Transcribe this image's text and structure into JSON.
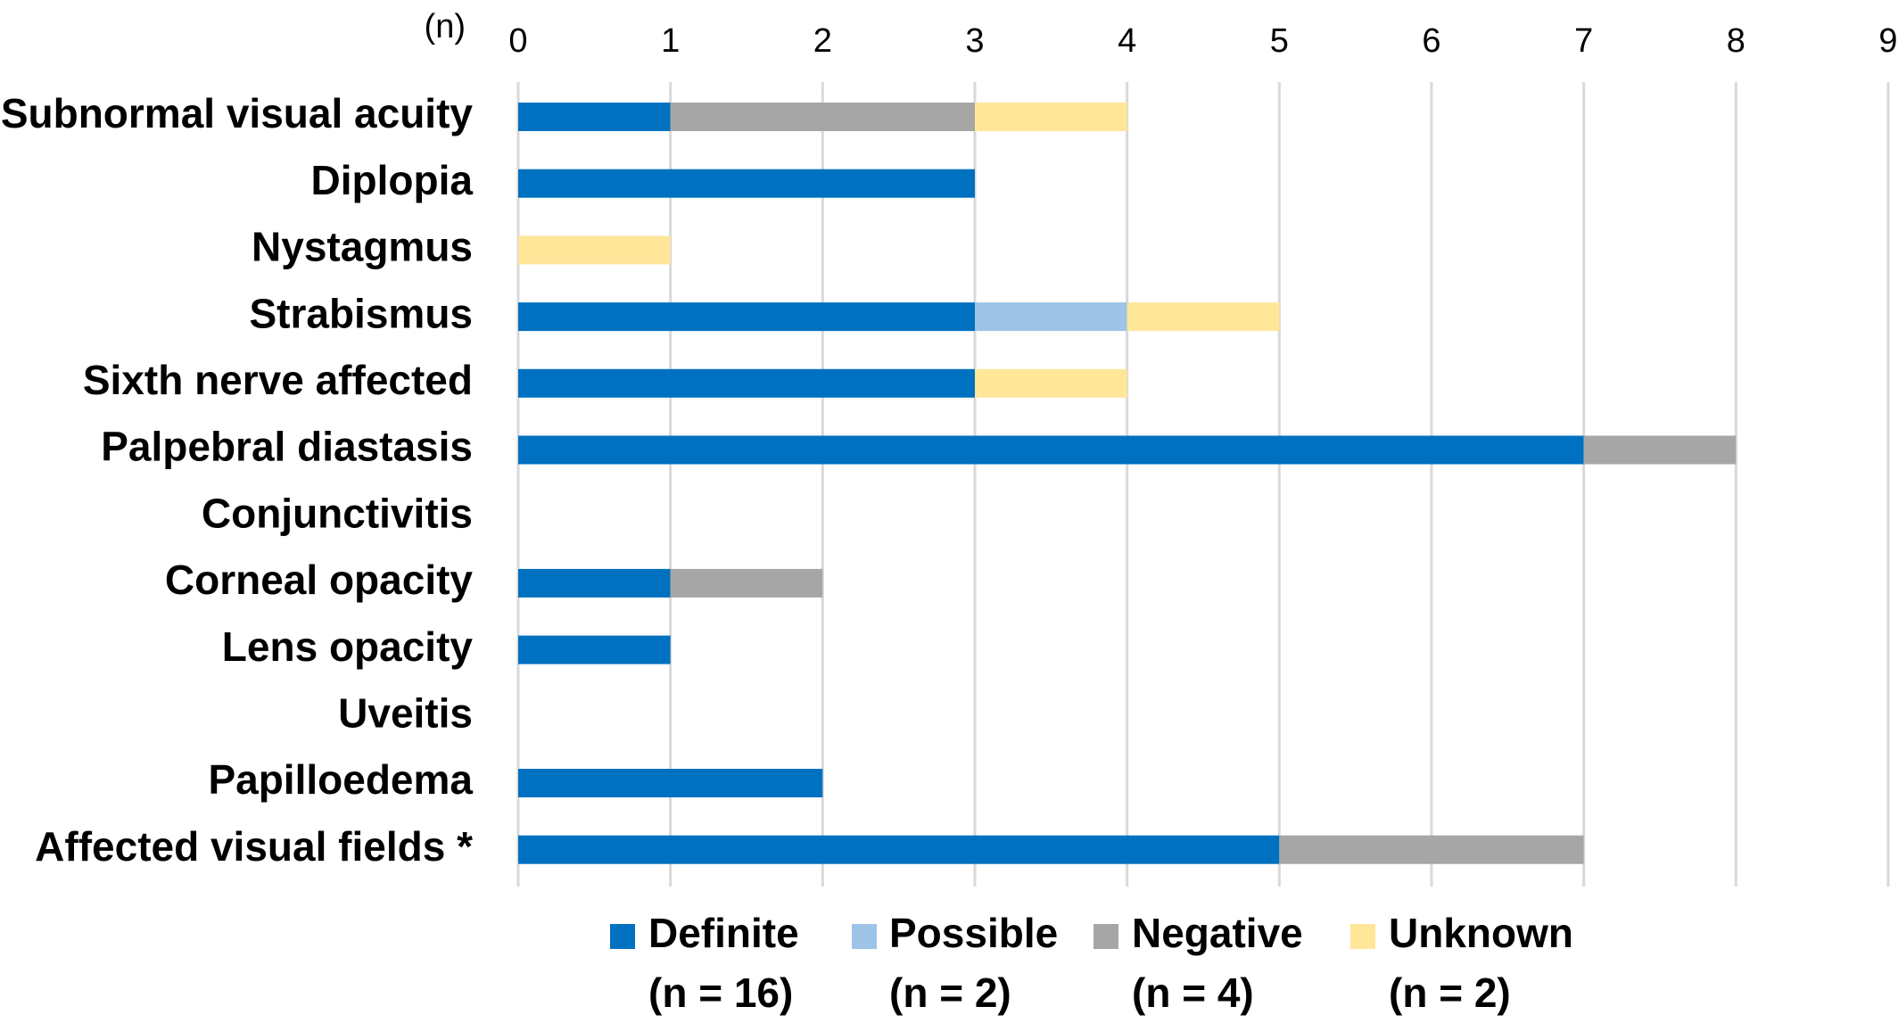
{
  "chart_data": {
    "type": "bar",
    "orientation": "horizontal",
    "stacked": true,
    "axis_unit_label": "(n)",
    "xlim": [
      0,
      9
    ],
    "xticks": [
      0,
      1,
      2,
      3,
      4,
      5,
      6,
      7,
      8,
      9
    ],
    "x_axis_position": "top",
    "grid": true,
    "legend_position": "bottom",
    "categories": [
      "Subnormal visual acuity",
      "Diplopia",
      "Nystagmus",
      "Strabismus",
      "Sixth nerve affected",
      "Palpebral diastasis",
      "Conjunctivitis",
      "Corneal opacity",
      "Lens opacity",
      "Uveitis",
      "Papilloedema",
      "Affected visual fields *"
    ],
    "series": [
      {
        "name": "Definite",
        "count_label": "(n = 16)",
        "color": "#0070C0",
        "values": [
          1,
          3,
          0,
          3,
          3,
          7,
          0,
          1,
          1,
          0,
          2,
          5
        ]
      },
      {
        "name": "Possible",
        "count_label": "(n = 2)",
        "color": "#9DC3E6",
        "values": [
          0,
          0,
          0,
          1,
          0,
          0,
          0,
          0,
          0,
          0,
          0,
          0
        ]
      },
      {
        "name": "Negative",
        "count_label": "(n = 4)",
        "color": "#A6A6A6",
        "values": [
          2,
          0,
          0,
          0,
          0,
          1,
          0,
          1,
          0,
          0,
          0,
          2
        ]
      },
      {
        "name": "Unknown",
        "count_label": "(n = 2)",
        "color": "#FFE699",
        "values": [
          1,
          0,
          1,
          1,
          1,
          0,
          0,
          0,
          0,
          0,
          0,
          0
        ]
      }
    ],
    "colors": {
      "gridline": "#D9D9D9",
      "text": "#000000"
    }
  }
}
